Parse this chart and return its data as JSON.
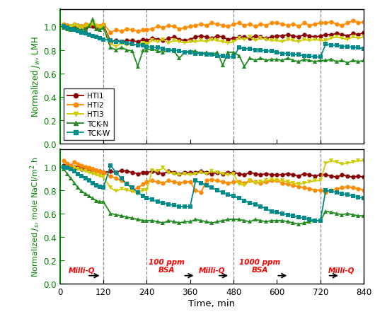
{
  "colors": {
    "HTI1": "#8B0000",
    "HTI2": "#FF8C00",
    "HTI3": "#CCCC00",
    "TCK-N": "#228B22",
    "TCK-W": "#008B8B"
  },
  "markers": {
    "HTI1": "o",
    "HTI2": "o",
    "HTI3": "v",
    "TCK-N": "^",
    "TCK-W": "s"
  },
  "vlines": [
    120,
    240,
    480,
    720
  ],
  "xlabel": "Time, min",
  "ylabel_top": "Normalized $J_w$, LMH",
  "ylabel_bot": "Normalized $J_s$, mole NaCl/m$^2$.h",
  "xticks": [
    0,
    120,
    240,
    360,
    480,
    600,
    720,
    840
  ],
  "yticks": [
    0.0,
    0.2,
    0.4,
    0.6,
    0.8,
    1.0
  ],
  "top": {
    "HTI1": {
      "x": [
        10,
        20,
        30,
        40,
        50,
        60,
        70,
        80,
        90,
        100,
        110,
        120,
        140,
        155,
        170,
        185,
        200,
        215,
        230,
        240,
        255,
        270,
        285,
        300,
        315,
        330,
        345,
        360,
        375,
        390,
        405,
        420,
        435,
        450,
        465,
        480,
        495,
        510,
        525,
        540,
        555,
        570,
        585,
        600,
        615,
        630,
        645,
        660,
        675,
        690,
        705,
        720,
        735,
        750,
        765,
        780,
        795,
        810,
        825,
        840
      ],
      "y": [
        1.0,
        1.01,
        1.0,
        0.99,
        1.01,
        1.0,
        0.99,
        1.01,
        1.0,
        0.99,
        1.0,
        1.01,
        0.87,
        0.88,
        0.87,
        0.88,
        0.88,
        0.87,
        0.89,
        0.88,
        0.9,
        0.89,
        0.88,
        0.9,
        0.91,
        0.89,
        0.88,
        0.89,
        0.91,
        0.92,
        0.91,
        0.9,
        0.92,
        0.91,
        0.89,
        0.9,
        0.91,
        0.91,
        0.9,
        0.92,
        0.91,
        0.9,
        0.91,
        0.92,
        0.92,
        0.93,
        0.92,
        0.91,
        0.93,
        0.92,
        0.91,
        0.92,
        0.93,
        0.93,
        0.94,
        0.93,
        0.92,
        0.94,
        0.93,
        0.95
      ]
    },
    "HTI2": {
      "x": [
        10,
        20,
        30,
        40,
        50,
        60,
        70,
        80,
        90,
        100,
        110,
        120,
        140,
        155,
        170,
        185,
        200,
        215,
        230,
        240,
        255,
        270,
        285,
        300,
        315,
        330,
        345,
        360,
        375,
        390,
        405,
        420,
        435,
        450,
        465,
        480,
        495,
        510,
        525,
        540,
        555,
        570,
        585,
        600,
        615,
        630,
        645,
        660,
        675,
        690,
        705,
        720,
        735,
        750,
        765,
        780,
        795,
        810,
        825,
        840
      ],
      "y": [
        1.02,
        1.01,
        1.0,
        1.02,
        1.01,
        1.0,
        1.02,
        1.01,
        1.03,
        1.01,
        1.0,
        1.02,
        0.95,
        0.97,
        0.96,
        0.98,
        0.97,
        0.96,
        0.97,
        0.97,
        0.98,
        1.0,
        0.99,
        1.01,
        1.0,
        0.98,
        0.99,
        1.0,
        1.01,
        1.02,
        1.01,
        1.03,
        1.02,
        1.01,
        1.0,
        1.02,
        1.03,
        1.01,
        1.02,
        1.0,
        1.02,
        1.01,
        1.03,
        1.03,
        1.02,
        1.01,
        1.02,
        1.0,
        1.03,
        1.01,
        1.02,
        1.03,
        1.03,
        1.04,
        1.02,
        1.01,
        1.03,
        1.05,
        1.03,
        1.04
      ]
    },
    "HTI3": {
      "x": [
        10,
        20,
        30,
        40,
        50,
        60,
        70,
        80,
        90,
        100,
        110,
        120,
        140,
        155,
        170,
        185,
        200,
        215,
        230,
        240,
        255,
        270,
        285,
        300,
        315,
        330,
        345,
        360,
        375,
        390,
        405,
        420,
        435,
        450,
        465,
        480,
        495,
        510,
        525,
        540,
        555,
        570,
        585,
        600,
        615,
        630,
        645,
        660,
        675,
        690,
        705,
        720,
        735,
        750,
        765,
        780,
        795,
        810,
        825,
        840
      ],
      "y": [
        1.0,
        0.99,
        1.0,
        1.01,
        1.0,
        0.99,
        1.0,
        1.01,
        1.02,
        1.0,
        0.99,
        1.0,
        0.85,
        0.83,
        0.86,
        0.84,
        0.85,
        0.84,
        0.86,
        0.85,
        0.88,
        0.87,
        0.89,
        0.86,
        0.88,
        0.87,
        0.86,
        0.87,
        0.87,
        0.88,
        0.87,
        0.89,
        0.88,
        0.87,
        0.86,
        0.87,
        0.9,
        0.89,
        0.91,
        0.88,
        0.9,
        0.89,
        0.88,
        0.88,
        0.87,
        0.89,
        0.88,
        0.87,
        0.89,
        0.88,
        0.89,
        0.88,
        0.88,
        0.9,
        0.91,
        0.9,
        0.89,
        0.91,
        0.9,
        0.91
      ]
    },
    "TCK-N": {
      "x": [
        10,
        20,
        30,
        40,
        50,
        60,
        70,
        80,
        90,
        100,
        110,
        120,
        140,
        155,
        170,
        185,
        200,
        215,
        230,
        240,
        255,
        270,
        285,
        300,
        315,
        330,
        345,
        360,
        375,
        390,
        405,
        420,
        435,
        450,
        465,
        480,
        495,
        510,
        525,
        540,
        555,
        570,
        585,
        600,
        615,
        630,
        645,
        660,
        675,
        690,
        705,
        720,
        735,
        750,
        765,
        780,
        795,
        810,
        825,
        840
      ],
      "y": [
        0.99,
        0.98,
        0.97,
        0.99,
        0.98,
        0.97,
        0.98,
        1.0,
        1.06,
        0.98,
        0.97,
        0.99,
        0.82,
        0.8,
        0.82,
        0.8,
        0.79,
        0.66,
        0.8,
        0.8,
        0.81,
        0.79,
        0.78,
        0.8,
        0.79,
        0.73,
        0.78,
        0.79,
        0.79,
        0.77,
        0.78,
        0.76,
        0.78,
        0.67,
        0.78,
        0.78,
        0.75,
        0.66,
        0.73,
        0.71,
        0.73,
        0.71,
        0.72,
        0.72,
        0.71,
        0.73,
        0.71,
        0.7,
        0.72,
        0.71,
        0.7,
        0.71,
        0.71,
        0.72,
        0.7,
        0.71,
        0.69,
        0.71,
        0.7,
        0.71
      ]
    },
    "TCK-W": {
      "x": [
        10,
        20,
        30,
        40,
        50,
        60,
        70,
        80,
        90,
        100,
        110,
        120,
        140,
        155,
        170,
        185,
        200,
        215,
        230,
        240,
        255,
        270,
        285,
        300,
        315,
        330,
        345,
        360,
        375,
        390,
        405,
        420,
        435,
        450,
        465,
        480,
        495,
        510,
        525,
        540,
        555,
        570,
        585,
        600,
        615,
        630,
        645,
        660,
        675,
        690,
        705,
        720,
        735,
        750,
        765,
        780,
        795,
        810,
        825,
        840
      ],
      "y": [
        1.0,
        0.99,
        0.98,
        0.97,
        0.96,
        0.95,
        0.94,
        0.93,
        0.92,
        0.91,
        0.9,
        0.89,
        0.88,
        0.87,
        0.87,
        0.86,
        0.85,
        0.84,
        0.84,
        0.83,
        0.82,
        0.82,
        0.81,
        0.8,
        0.8,
        0.79,
        0.78,
        0.78,
        0.77,
        0.77,
        0.76,
        0.76,
        0.75,
        0.75,
        0.74,
        0.74,
        0.82,
        0.81,
        0.81,
        0.8,
        0.8,
        0.79,
        0.79,
        0.78,
        0.77,
        0.77,
        0.76,
        0.76,
        0.75,
        0.75,
        0.74,
        0.74,
        0.85,
        0.84,
        0.84,
        0.83,
        0.83,
        0.82,
        0.82,
        0.81
      ]
    }
  },
  "bot": {
    "HTI1": {
      "x": [
        10,
        20,
        30,
        40,
        50,
        60,
        70,
        80,
        90,
        100,
        110,
        120,
        140,
        155,
        170,
        185,
        200,
        215,
        230,
        240,
        255,
        270,
        285,
        300,
        315,
        330,
        345,
        360,
        375,
        390,
        405,
        420,
        435,
        450,
        465,
        480,
        495,
        510,
        525,
        540,
        555,
        570,
        585,
        600,
        615,
        630,
        645,
        660,
        675,
        690,
        705,
        720,
        735,
        750,
        765,
        780,
        795,
        810,
        825,
        840
      ],
      "y": [
        1.01,
        1.0,
        1.0,
        1.0,
        0.99,
        0.98,
        0.99,
        0.97,
        0.98,
        0.97,
        0.96,
        0.95,
        0.96,
        0.95,
        0.97,
        0.96,
        0.95,
        0.94,
        0.95,
        0.95,
        0.96,
        0.95,
        0.94,
        0.96,
        0.95,
        0.94,
        0.95,
        0.95,
        0.95,
        0.96,
        0.95,
        0.94,
        0.95,
        0.94,
        0.95,
        0.95,
        0.94,
        0.93,
        0.95,
        0.94,
        0.93,
        0.94,
        0.93,
        0.93,
        0.93,
        0.94,
        0.93,
        0.92,
        0.94,
        0.93,
        0.92,
        0.93,
        0.93,
        0.92,
        0.91,
        0.93,
        0.92,
        0.91,
        0.92,
        0.91
      ]
    },
    "HTI2": {
      "x": [
        10,
        20,
        30,
        40,
        50,
        60,
        70,
        80,
        90,
        100,
        110,
        120,
        140,
        155,
        170,
        185,
        200,
        215,
        230,
        240,
        255,
        270,
        285,
        300,
        315,
        330,
        345,
        360,
        375,
        390,
        405,
        420,
        435,
        450,
        465,
        480,
        495,
        510,
        525,
        540,
        555,
        570,
        585,
        600,
        615,
        630,
        645,
        660,
        675,
        690,
        705,
        720,
        735,
        750,
        765,
        780,
        795,
        810,
        825,
        840
      ],
      "y": [
        1.05,
        1.03,
        1.01,
        1.04,
        1.02,
        1.01,
        1.0,
        0.99,
        0.98,
        0.97,
        0.96,
        0.95,
        0.92,
        0.9,
        0.88,
        0.86,
        0.8,
        0.82,
        0.85,
        0.87,
        0.88,
        0.87,
        0.86,
        0.88,
        0.87,
        0.86,
        0.87,
        0.87,
        0.8,
        0.78,
        0.88,
        0.89,
        0.88,
        0.87,
        0.86,
        0.87,
        0.87,
        0.86,
        0.88,
        0.87,
        0.86,
        0.87,
        0.88,
        0.88,
        0.86,
        0.85,
        0.84,
        0.83,
        0.82,
        0.81,
        0.8,
        0.8,
        0.78,
        0.8,
        0.81,
        0.82,
        0.83,
        0.82,
        0.81,
        0.8
      ]
    },
    "HTI3": {
      "x": [
        10,
        20,
        30,
        40,
        50,
        60,
        70,
        80,
        90,
        100,
        110,
        120,
        140,
        155,
        170,
        185,
        200,
        215,
        230,
        240,
        255,
        270,
        285,
        300,
        315,
        330,
        345,
        360,
        375,
        390,
        405,
        420,
        435,
        450,
        465,
        480,
        495,
        510,
        525,
        540,
        555,
        570,
        585,
        600,
        615,
        630,
        645,
        660,
        675,
        690,
        705,
        720,
        735,
        750,
        765,
        780,
        795,
        810,
        825,
        840
      ],
      "y": [
        1.0,
        0.99,
        0.98,
        0.99,
        0.98,
        0.97,
        0.96,
        0.95,
        0.94,
        0.93,
        0.92,
        0.91,
        0.82,
        0.79,
        0.81,
        0.8,
        0.79,
        0.77,
        0.8,
        0.8,
        0.97,
        0.96,
        0.99,
        0.95,
        0.94,
        0.93,
        0.94,
        0.93,
        0.94,
        0.95,
        0.94,
        0.96,
        0.95,
        0.94,
        0.93,
        0.94,
        0.85,
        0.84,
        0.88,
        0.86,
        0.87,
        0.88,
        0.89,
        0.88,
        0.88,
        0.87,
        0.86,
        0.85,
        0.86,
        0.87,
        0.88,
        0.88,
        1.03,
        1.05,
        1.04,
        1.02,
        1.03,
        1.04,
        1.05,
        1.05
      ]
    },
    "TCK-N": {
      "x": [
        10,
        20,
        30,
        40,
        50,
        60,
        70,
        80,
        90,
        100,
        110,
        120,
        140,
        155,
        170,
        185,
        200,
        215,
        230,
        240,
        255,
        270,
        285,
        300,
        315,
        330,
        345,
        360,
        375,
        390,
        405,
        420,
        435,
        450,
        465,
        480,
        495,
        510,
        525,
        540,
        555,
        570,
        585,
        600,
        615,
        630,
        645,
        660,
        675,
        690,
        705,
        720,
        735,
        750,
        765,
        780,
        795,
        810,
        825,
        840
      ],
      "y": [
        0.98,
        0.94,
        0.9,
        0.86,
        0.82,
        0.79,
        0.77,
        0.75,
        0.73,
        0.71,
        0.7,
        0.7,
        0.6,
        0.59,
        0.58,
        0.57,
        0.56,
        0.55,
        0.54,
        0.54,
        0.54,
        0.53,
        0.52,
        0.54,
        0.53,
        0.52,
        0.53,
        0.53,
        0.55,
        0.54,
        0.53,
        0.52,
        0.53,
        0.54,
        0.55,
        0.55,
        0.55,
        0.54,
        0.53,
        0.55,
        0.54,
        0.53,
        0.54,
        0.54,
        0.54,
        0.53,
        0.52,
        0.51,
        0.52,
        0.53,
        0.54,
        0.54,
        0.62,
        0.61,
        0.6,
        0.59,
        0.6,
        0.59,
        0.58,
        0.58
      ]
    },
    "TCK-W": {
      "x": [
        10,
        20,
        30,
        40,
        50,
        60,
        70,
        80,
        90,
        100,
        110,
        120,
        140,
        155,
        170,
        185,
        200,
        215,
        230,
        240,
        255,
        270,
        285,
        300,
        315,
        330,
        345,
        360,
        375,
        390,
        405,
        420,
        435,
        450,
        465,
        480,
        495,
        510,
        525,
        540,
        555,
        570,
        585,
        600,
        615,
        630,
        645,
        660,
        675,
        690,
        705,
        720,
        735,
        750,
        765,
        780,
        795,
        810,
        825,
        840
      ],
      "y": [
        1.0,
        0.99,
        0.98,
        0.96,
        0.94,
        0.92,
        0.9,
        0.88,
        0.86,
        0.84,
        0.83,
        0.82,
        1.01,
        0.95,
        0.9,
        0.85,
        0.82,
        0.78,
        0.75,
        0.73,
        0.72,
        0.7,
        0.69,
        0.68,
        0.67,
        0.66,
        0.66,
        0.66,
        0.88,
        0.86,
        0.84,
        0.82,
        0.8,
        0.78,
        0.76,
        0.75,
        0.73,
        0.71,
        0.69,
        0.68,
        0.66,
        0.64,
        0.62,
        0.61,
        0.6,
        0.59,
        0.58,
        0.57,
        0.56,
        0.55,
        0.54,
        0.54,
        0.8,
        0.79,
        0.78,
        0.77,
        0.76,
        0.75,
        0.74,
        0.73
      ]
    }
  }
}
